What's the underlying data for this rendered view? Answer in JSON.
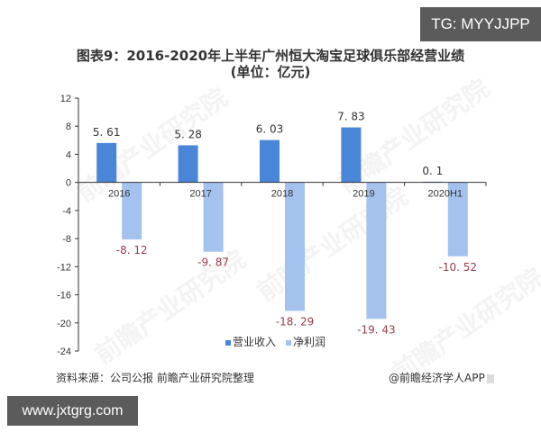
{
  "badges": {
    "top_right": "TG: MYYJJPP",
    "bottom_left": "www.jxtgrg.com"
  },
  "header": {
    "title_line1": "图表9：2016-2020年上半年广州恒大淘宝足球俱乐部经营业绩",
    "title_line2": "(单位：亿元)"
  },
  "footer": {
    "source": "资料来源：公司公报 前瞻产业研究院整理",
    "credit": "@前瞻经济学人APP"
  },
  "watermark": "前瞻产业研究院",
  "colors": {
    "revenue": "#4a86d8",
    "profit": "#a4c2ee",
    "negative_label": "#9b3b4a",
    "axis": "#333333"
  },
  "chart_data": {
    "type": "bar",
    "title": "图表9：2016-2020年上半年广州恒大淘宝足球俱乐部经营业绩",
    "subtitle": "(单位：亿元)",
    "xlabel": "",
    "ylabel": "",
    "categories": [
      "2016",
      "2017",
      "2018",
      "2019",
      "2020H1"
    ],
    "series": [
      {
        "name": "营业收入",
        "values": [
          5.61,
          5.28,
          6.03,
          7.83,
          0.1
        ],
        "labels": [
          "5.61",
          "5.28",
          "6.03",
          "7.83",
          "0.1"
        ]
      },
      {
        "name": "净利润",
        "values": [
          -8.12,
          -9.87,
          -18.29,
          -19.43,
          -10.52
        ],
        "labels": [
          "-8.12",
          "-9.87",
          "-18.29",
          "-19.43",
          "-10.52"
        ]
      }
    ],
    "ylim": [
      -24,
      12
    ],
    "yticks": [
      "12",
      "8",
      "4",
      "0",
      "-4",
      "-8",
      "-12",
      "-16",
      "-20",
      "-24"
    ],
    "grid": false,
    "legend_position": "bottom"
  }
}
